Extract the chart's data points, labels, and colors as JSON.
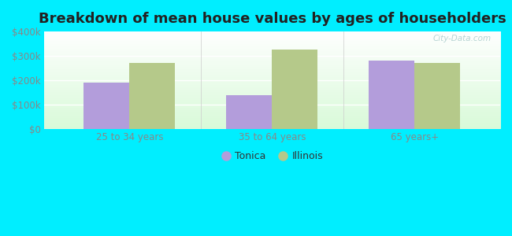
{
  "title": "Breakdown of mean house values by ages of householders",
  "categories": [
    "25 to 34 years",
    "35 to 64 years",
    "65 years+"
  ],
  "tonica_values": [
    190000,
    140000,
    280000
  ],
  "illinois_values": [
    270000,
    325000,
    270000
  ],
  "tonica_color": "#b39ddb",
  "illinois_color": "#b5c98a",
  "ylim": [
    0,
    400000
  ],
  "yticks": [
    0,
    100000,
    200000,
    300000,
    400000
  ],
  "ytick_labels": [
    "$0",
    "$100k",
    "$200k",
    "$300k",
    "$400k"
  ],
  "outer_bg": "#00eeff",
  "legend_labels": [
    "Tonica",
    "Illinois"
  ],
  "bar_width": 0.32,
  "title_fontsize": 13,
  "tick_fontsize": 8.5,
  "legend_fontsize": 9,
  "grid_color": "#ddeecc",
  "tick_color": "#888888",
  "watermark": "City-Data.com"
}
